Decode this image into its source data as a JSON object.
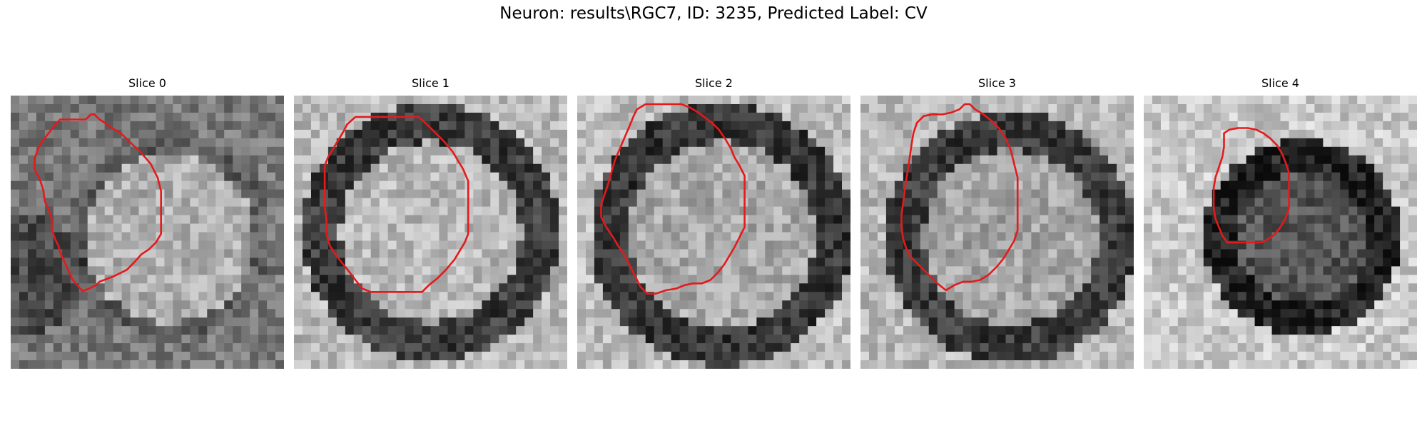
{
  "figure": {
    "title": "Neuron: results\\RGC7, ID: 3235, Predicted Label: CV"
  },
  "panels": [
    {
      "title": "Slice 0"
    },
    {
      "title": "Slice 1"
    },
    {
      "title": "Slice 2"
    },
    {
      "title": "Slice 3"
    },
    {
      "title": "Slice 4"
    }
  ],
  "colors": {
    "contour": "#e41a1c",
    "background": "#ffffff"
  }
}
